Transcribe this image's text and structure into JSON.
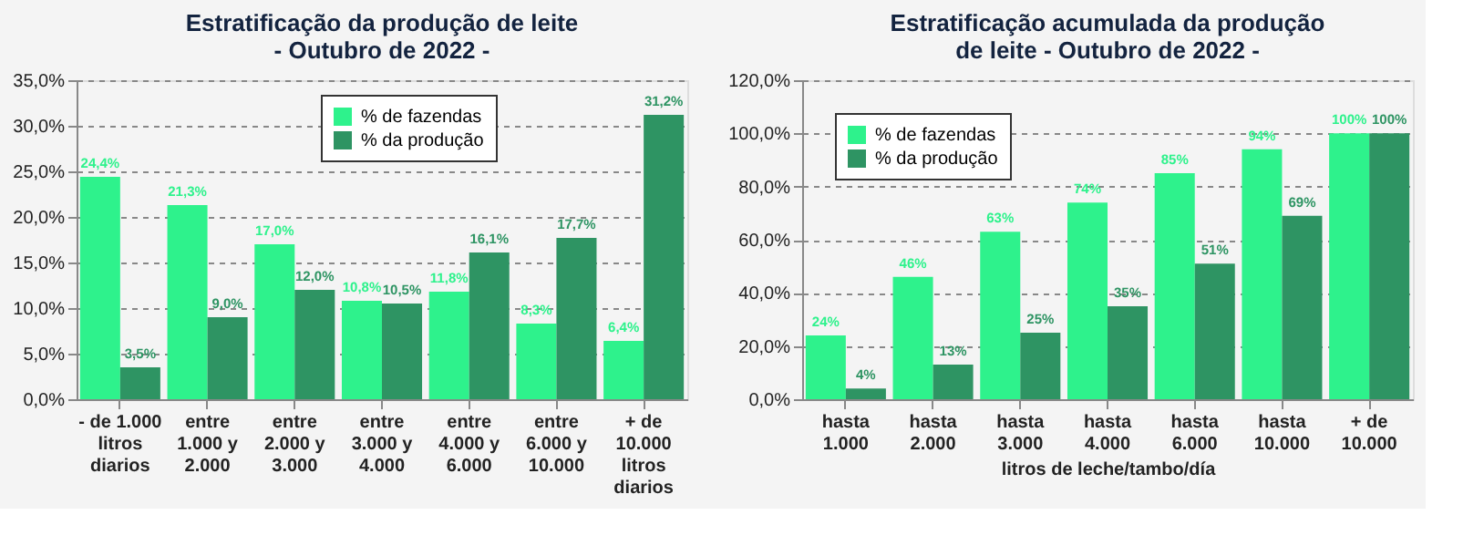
{
  "chart_data": [
    {
      "type": "bar",
      "title": "Estratificação da produção de leite\n- Outubro de 2022 -",
      "categories": [
        "- de 1.000\nlitros\ndiarios",
        "entre\n1.000 y\n2.000",
        "entre\n2.000 y\n3.000",
        "entre\n3.000 y\n4.000",
        "entre\n4.000 y\n6.000",
        "entre\n6.000 y\n10.000",
        "+ de\n10.000\nlitros\ndiarios"
      ],
      "series": [
        {
          "name": "% de fazendas",
          "color": "#2ef28c",
          "values": [
            24.4,
            21.3,
            17.0,
            10.8,
            11.8,
            8.3,
            6.4
          ],
          "value_labels": [
            "24,4%",
            "21,3%",
            "17,0%",
            "10,8%",
            "11,8%",
            "8,3%",
            "6,4%"
          ]
        },
        {
          "name": "% da produção",
          "color": "#2e9463",
          "values": [
            3.5,
            9.0,
            12.0,
            10.5,
            16.1,
            17.7,
            31.2
          ],
          "value_labels": [
            "3,5%",
            "9,0%",
            "12,0%",
            "10,5%",
            "16,1%",
            "17,7%",
            "31,2%"
          ]
        }
      ],
      "ylim": [
        0,
        35
      ],
      "yticks": [
        {
          "value": 0,
          "label": "0,0%"
        },
        {
          "value": 5,
          "label": "5,0%"
        },
        {
          "value": 10,
          "label": "10,0%"
        },
        {
          "value": 15,
          "label": "15,0%"
        },
        {
          "value": 20,
          "label": "20,0%"
        },
        {
          "value": 25,
          "label": "25,0%"
        },
        {
          "value": 30,
          "label": "30,0%"
        },
        {
          "value": 35,
          "label": "35,0%"
        }
      ],
      "grid": "y",
      "legend": "top"
    },
    {
      "type": "bar",
      "title": "Estratificação acumulada da produção\nde leite - Outubro de 2022 -",
      "xlabel": "litros de leche/tambo/día",
      "categories": [
        "hasta\n1.000",
        "hasta\n2.000",
        "hasta\n3.000",
        "hasta\n4.000",
        "hasta\n6.000",
        "hasta\n10.000",
        "+ de\n10.000"
      ],
      "series": [
        {
          "name": "% de fazendas",
          "color": "#2ef28c",
          "values": [
            24,
            46,
            63,
            74,
            85,
            94,
            100
          ],
          "value_labels": [
            "24%",
            "46%",
            "63%",
            "74%",
            "85%",
            "94%",
            "100%"
          ]
        },
        {
          "name": "% da produção",
          "color": "#2e9463",
          "values": [
            4,
            13,
            25,
            35,
            51,
            69,
            100
          ],
          "value_labels": [
            "4%",
            "13%",
            "25%",
            "35%",
            "51%",
            "69%",
            "100%"
          ]
        }
      ],
      "ylim": [
        0,
        120
      ],
      "yticks": [
        {
          "value": 0,
          "label": "0,0%"
        },
        {
          "value": 20,
          "label": "20,0%"
        },
        {
          "value": 40,
          "label": "40,0%"
        },
        {
          "value": 60,
          "label": "60,0%"
        },
        {
          "value": 80,
          "label": "80,0%"
        },
        {
          "value": 100,
          "label": "100,0%"
        },
        {
          "value": 120,
          "label": "120,0%"
        }
      ],
      "grid": "y",
      "legend": "top left"
    }
  ]
}
